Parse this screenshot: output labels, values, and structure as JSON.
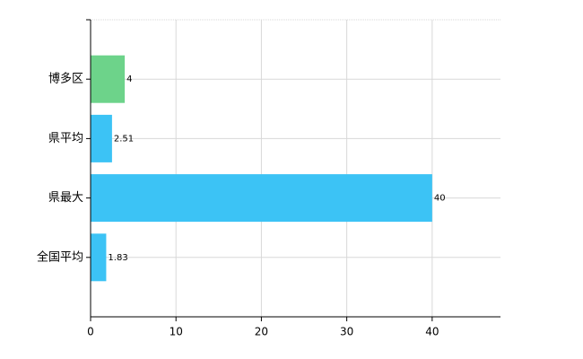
{
  "chart_data": {
    "type": "bar",
    "orientation": "horizontal",
    "categories": [
      "博多区",
      "県平均",
      "県最大",
      "全国平均"
    ],
    "values": [
      4,
      2.51,
      40,
      1.83
    ],
    "colors": [
      "#6dd38a",
      "#3cc3f5",
      "#3cc3f5",
      "#3cc3f5"
    ],
    "xlim": [
      0,
      48
    ],
    "xticks": [
      0,
      10,
      20,
      30,
      40
    ],
    "grid": true
  }
}
